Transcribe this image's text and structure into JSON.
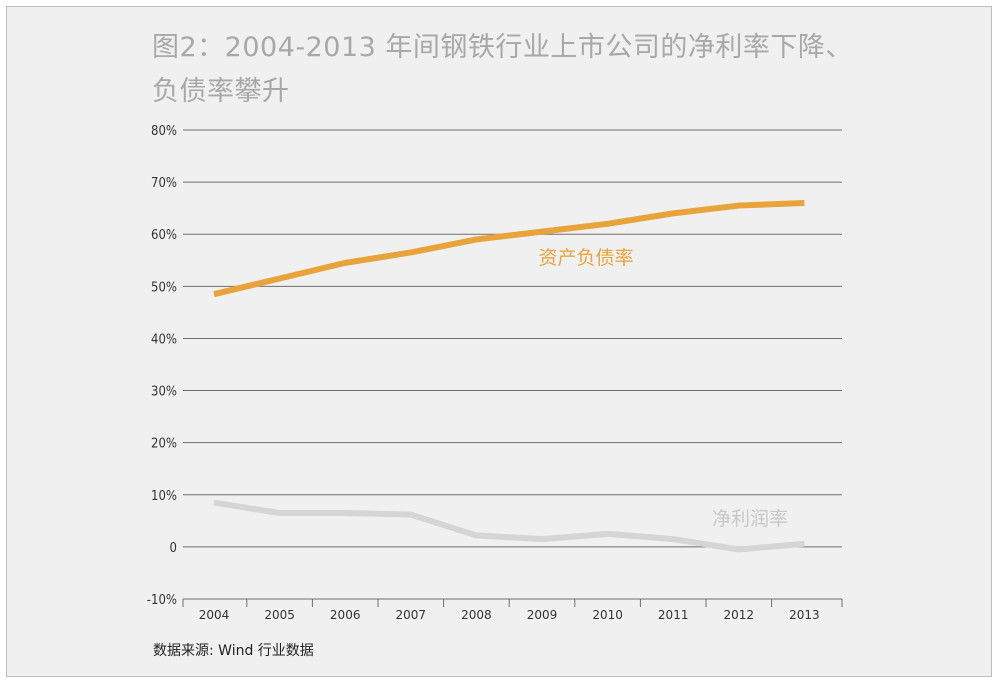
{
  "title_line1": "图2：2004-2013 年间钢铁行业上市公司的净利率下降、",
  "title_line2": "负债率攀升",
  "source": "数据来源: Wind 行业数据",
  "chart_data": {
    "type": "line",
    "x": [
      "2004",
      "2005",
      "2006",
      "2007",
      "2008",
      "2009",
      "2010",
      "2011",
      "2012",
      "2013"
    ],
    "ylim": [
      -10,
      80
    ],
    "y_ticks": [
      {
        "value": 80,
        "label": "80%"
      },
      {
        "value": 70,
        "label": "70%"
      },
      {
        "value": 60,
        "label": "60%"
      },
      {
        "value": 50,
        "label": "50%"
      },
      {
        "value": 40,
        "label": "40%"
      },
      {
        "value": 30,
        "label": "30%"
      },
      {
        "value": 20,
        "label": "20%"
      },
      {
        "value": 10,
        "label": "10%"
      },
      {
        "value": 0,
        "label": "0"
      },
      {
        "value": -10,
        "label": "-10%"
      }
    ],
    "grid": true,
    "series": [
      {
        "name": "资产负债率",
        "color": "#e8a33b",
        "values": [
          48.5,
          51.5,
          54.5,
          56.5,
          59,
          60.5,
          62,
          64,
          65.5,
          66
        ]
      },
      {
        "name": "净利润率",
        "color": "#d5d5d5",
        "values": [
          8.5,
          6.5,
          6.5,
          6.2,
          2.2,
          1.5,
          2.5,
          1.5,
          -0.5,
          0.6
        ]
      }
    ]
  }
}
